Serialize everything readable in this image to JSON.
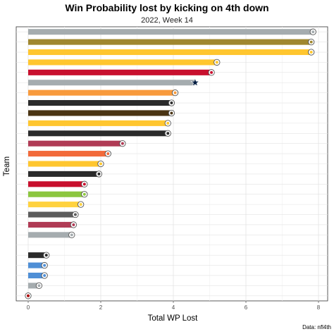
{
  "chart_data": {
    "type": "bar",
    "orientation": "horizontal",
    "title": "Win Probability lost by kicking on 4th down",
    "subtitle": "2022, Week 14",
    "xlabel": "Total WP Lost",
    "ylabel": "Team",
    "caption": "Data: nfl4th",
    "xlim": [
      0,
      8.2
    ],
    "xticks": [
      0,
      2,
      4,
      6,
      8
    ],
    "grid": true,
    "legend": "none",
    "bars": [
      {
        "value": 7.85,
        "color": "#A5ACAF",
        "logo": "raiders-logo-icon"
      },
      {
        "value": 7.8,
        "color": "#A0872F",
        "logo": "saints-logo-icon"
      },
      {
        "value": 7.8,
        "color": "#FFC62F",
        "logo": "vikings-logo-icon"
      },
      {
        "value": 5.2,
        "color": "#FFC62F",
        "logo": "chiefs-logo-icon"
      },
      {
        "value": 5.05,
        "color": "#C8102E",
        "logo": "bills-logo-icon"
      },
      {
        "value": 4.6,
        "color": "#A5ACAF",
        "logo": "cowboys-star-icon"
      },
      {
        "value": 4.05,
        "color": "#F89A3C",
        "logo": "broncos-logo-icon"
      },
      {
        "value": 3.95,
        "color": "#2B2B2B",
        "logo": "bengals-logo-icon"
      },
      {
        "value": 3.95,
        "color": "#4A3413",
        "logo": "browns-logo-icon"
      },
      {
        "value": 3.85,
        "color": "#FFC62F",
        "logo": "steelers-logo-icon"
      },
      {
        "value": 3.85,
        "color": "#2B2B2B",
        "logo": "ravens-logo-icon"
      },
      {
        "value": 2.6,
        "color": "#B03B55",
        "logo": "texans-logo-icon"
      },
      {
        "value": 2.2,
        "color": "#F26A3A",
        "logo": "dolphins-logo-icon"
      },
      {
        "value": 2.0,
        "color": "#FFC62F",
        "logo": "rams-logo-icon"
      },
      {
        "value": 1.95,
        "color": "#2B2B2B",
        "logo": "eagles-logo-icon"
      },
      {
        "value": 1.55,
        "color": "#C8102E",
        "logo": "cardinals-logo-icon"
      },
      {
        "value": 1.55,
        "color": "#8CC63F",
        "logo": "seahawks-logo-icon"
      },
      {
        "value": 1.45,
        "color": "#FFD23F",
        "logo": "packers-logo-icon"
      },
      {
        "value": 1.3,
        "color": "#5C5C5C",
        "logo": "buccaneers-logo-icon"
      },
      {
        "value": 1.25,
        "color": "#B03B55",
        "logo": "commanders-logo-icon"
      },
      {
        "value": 1.2,
        "color": "#A5ACAF",
        "logo": "panthers-logo-icon"
      },
      {
        "value": 0.0,
        "color": "#FFFFFF",
        "logo": ""
      },
      {
        "value": 0.5,
        "color": "#2B2B2B",
        "logo": "jaguars-logo-icon"
      },
      {
        "value": 0.45,
        "color": "#4F8FD6",
        "logo": "colts-logo-icon"
      },
      {
        "value": 0.45,
        "color": "#4F8FD6",
        "logo": "giants-logo-icon"
      },
      {
        "value": 0.3,
        "color": "#A5ACAF",
        "logo": "lions-logo-icon"
      },
      {
        "value": 0.0,
        "color": "#B3995D",
        "logo": "49ers-logo-icon"
      }
    ]
  }
}
